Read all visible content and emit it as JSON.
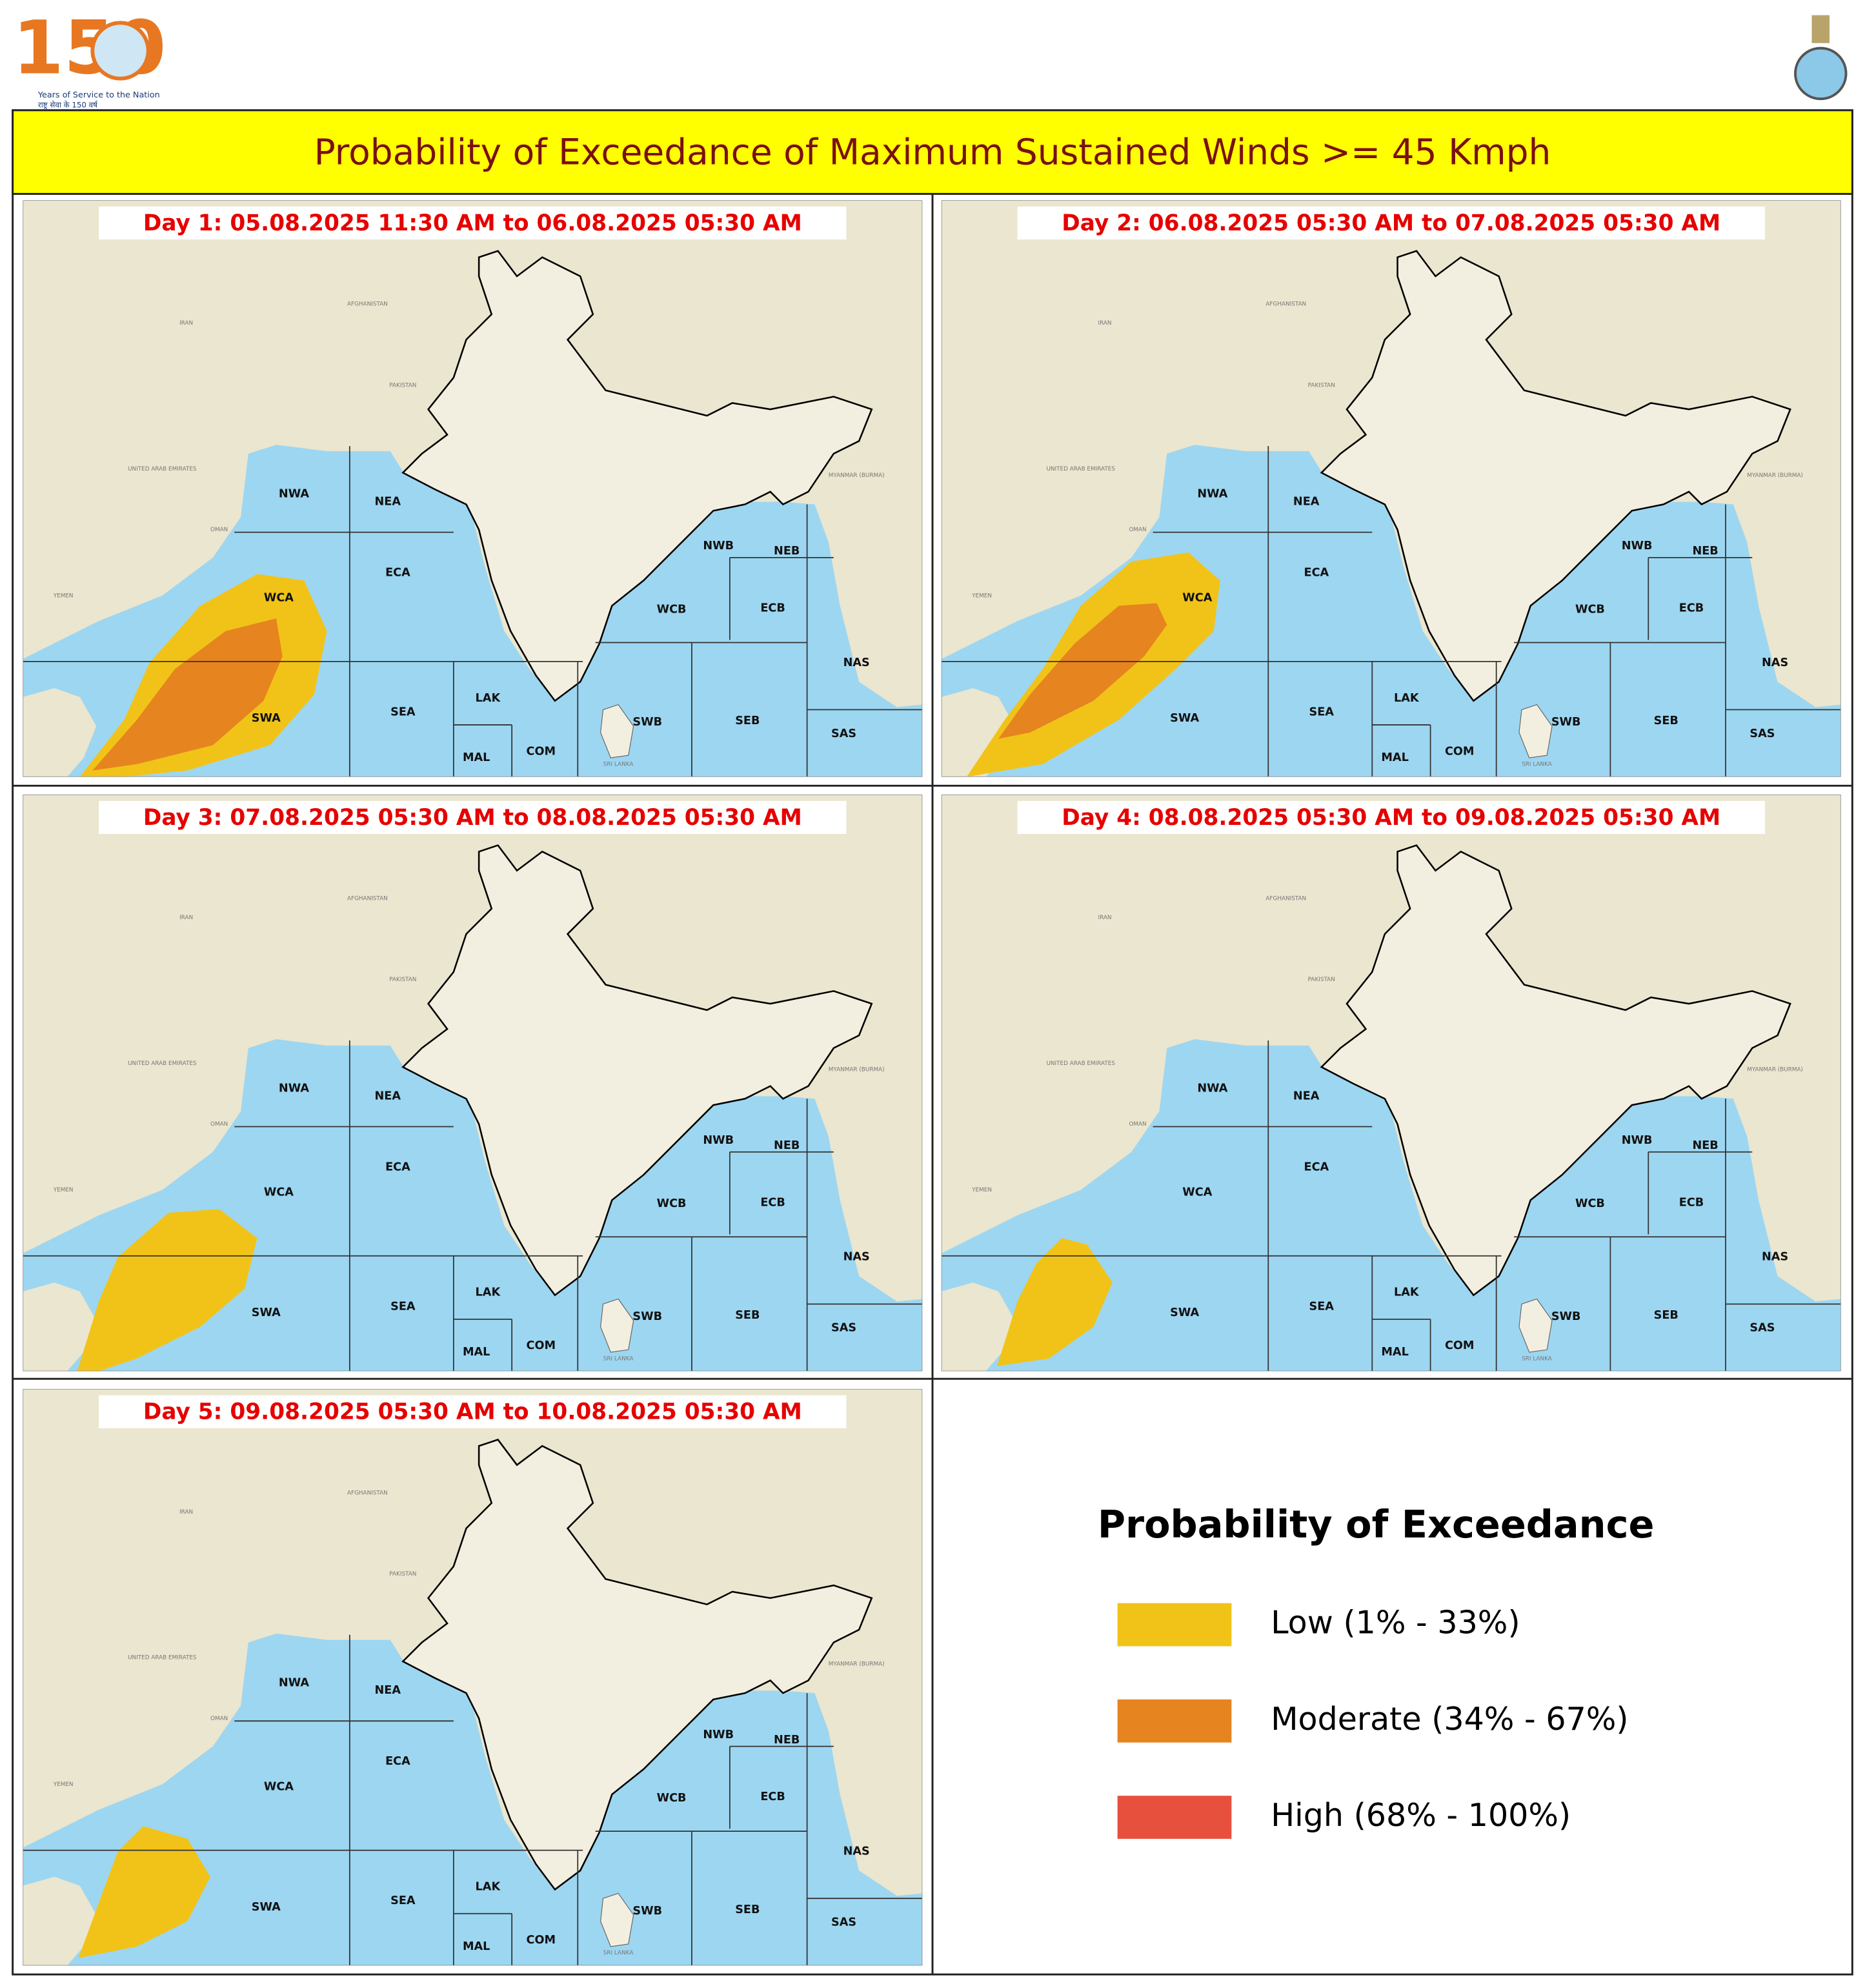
{
  "header": {
    "logo_number": "150",
    "logo_text": "Years of Service to the Nation",
    "logo_hindi": "राष्ट्र सेवा के 150 वर्ष"
  },
  "title": "Probability of Exceedance of Maximum Sustained Winds >= 45 Kmph",
  "map_labels": {
    "regions": [
      "NWA",
      "NEA",
      "ECA",
      "WCA",
      "SWA",
      "SEA",
      "LAK",
      "MAL",
      "COM",
      "NWB",
      "NEB",
      "WCB",
      "ECB",
      "SWB",
      "SEB",
      "NAS",
      "SAS"
    ],
    "countries": [
      "IRAN",
      "AFGHANISTAN",
      "PAKISTAN",
      "OMAN",
      "YEMEN",
      "UNITED ARAB EMIRATES",
      "MYANMAR (BURMA)",
      "SRI LANKA"
    ]
  },
  "panels": [
    {
      "label": "Day 1: 05.08.2025 11:30 AM to 06.08.2025 05:30 AM"
    },
    {
      "label": "Day 2: 06.08.2025 05:30 AM to 07.08.2025 05:30 AM"
    },
    {
      "label": "Day 3: 07.08.2025 05:30 AM to 08.08.2025 05:30 AM"
    },
    {
      "label": "Day 4: 08.08.2025 05:30 AM to 09.08.2025 05:30 AM"
    },
    {
      "label": "Day 5: 09.08.2025 05:30 AM to 10.08.2025 05:30 AM"
    }
  ],
  "legend": {
    "title": "Probability of Exceedance",
    "items": [
      {
        "label": "Low (1% - 33%)",
        "color": "#f1c318"
      },
      {
        "label": "Moderate (34% - 67%)",
        "color": "#e6841f"
      },
      {
        "label": "High (68% - 100%)",
        "color": "#e8503e"
      }
    ]
  }
}
